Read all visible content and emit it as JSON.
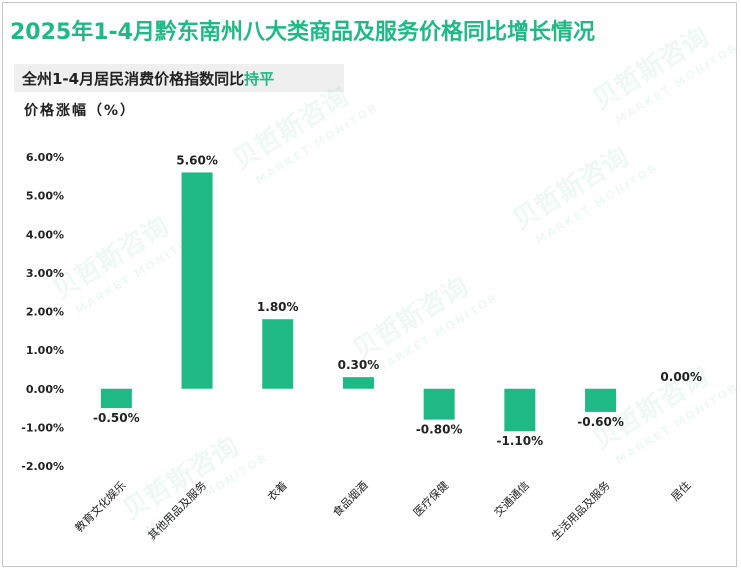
{
  "colors": {
    "accent": "#1fb986",
    "bar": "#1fb986",
    "text": "#222222",
    "subtitle_bg": "#efefef"
  },
  "header": {
    "title": "2025年1-4月黔东南州八大类商品及服务价格同比增长情况",
    "subtitle_prefix": "全州1-4月居民消费价格指数同比",
    "subtitle_highlight": "持平",
    "unit_label": "价格涨幅（%）"
  },
  "watermark": {
    "brand": "贝哲斯咨询",
    "brand_en": "MARKET MONITOR"
  },
  "chart_data": {
    "type": "bar",
    "title": "2025年1-4月黔东南州八大类商品及服务价格同比增长情况",
    "ylabel": "价格涨幅（%）",
    "xlabel": "",
    "categories": [
      "教育文化娱乐",
      "其他用品及服务",
      "衣着",
      "食品烟酒",
      "医疗保健",
      "交通通信",
      "生活用品及服务",
      "居住"
    ],
    "values": [
      -0.5,
      5.6,
      1.8,
      0.3,
      -0.8,
      -1.1,
      -0.6,
      0.0
    ],
    "data_labels": [
      "-0.50%",
      "5.60%",
      "1.80%",
      "0.30%",
      "-0.80%",
      "-1.10%",
      "-0.60%",
      "0.00%"
    ],
    "ylim": [
      -2.0,
      6.0
    ],
    "yticks": [
      6.0,
      5.0,
      4.0,
      3.0,
      2.0,
      1.0,
      0.0,
      -1.0,
      -2.0
    ],
    "ytick_labels": [
      "6.00%",
      "5.00%",
      "4.00%",
      "3.00%",
      "2.00%",
      "1.00%",
      "0.00%",
      "-1.00%",
      "-2.00%"
    ],
    "grid": false,
    "legend": "none"
  }
}
